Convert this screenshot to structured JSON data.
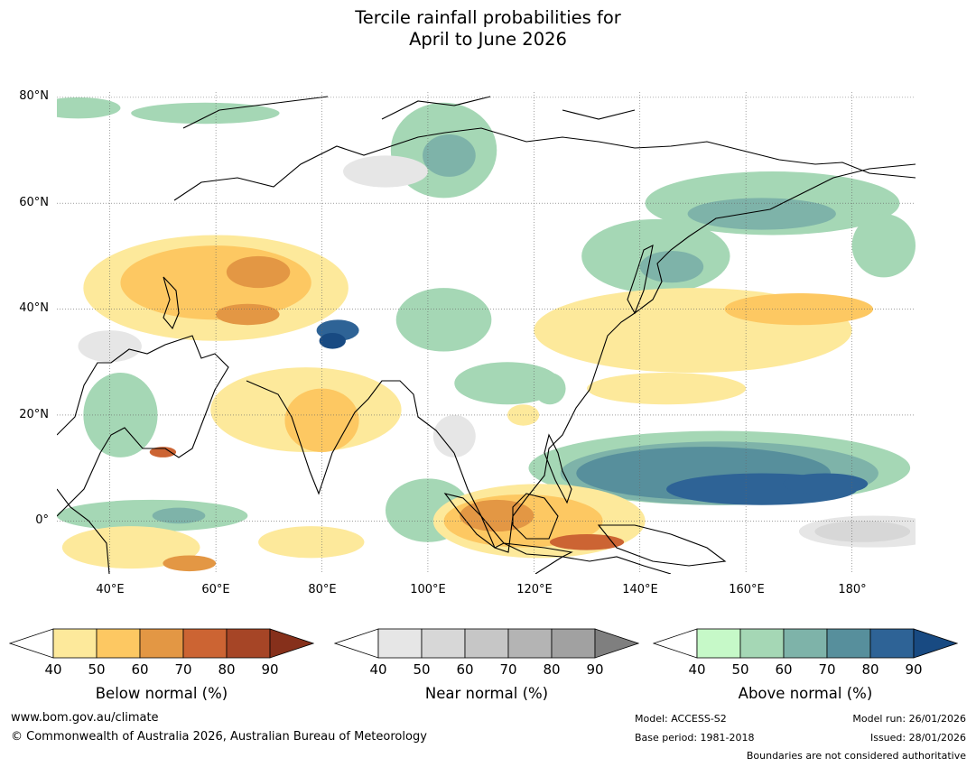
{
  "title": {
    "line1": "Tercile rainfall probabilities for",
    "line2": "April to June 2026"
  },
  "map": {
    "projection": "equirectangular",
    "lon_range": [
      30,
      192
    ],
    "lat_range": [
      -10,
      81
    ],
    "lat_ticks": [
      {
        "value": 80,
        "label": "80°N"
      },
      {
        "value": 60,
        "label": "60°N"
      },
      {
        "value": 40,
        "label": "40°N"
      },
      {
        "value": 20,
        "label": "20°N"
      },
      {
        "value": 0,
        "label": "0°"
      }
    ],
    "lon_ticks": [
      {
        "value": 40,
        "label": "40°E"
      },
      {
        "value": 60,
        "label": "60°E"
      },
      {
        "value": 80,
        "label": "80°E"
      },
      {
        "value": 100,
        "label": "100°E"
      },
      {
        "value": 120,
        "label": "120°E"
      },
      {
        "value": 140,
        "label": "140°E"
      },
      {
        "value": 160,
        "label": "160°E"
      },
      {
        "value": 180,
        "label": "180°"
      }
    ],
    "regions": [
      {
        "category": "above",
        "level": 50,
        "lon": 34,
        "lat": 78,
        "rx": 8,
        "ry": 2
      },
      {
        "category": "above",
        "level": 50,
        "lon": 58,
        "lat": 77,
        "rx": 14,
        "ry": 2
      },
      {
        "category": "above",
        "level": 50,
        "lon": 103,
        "lat": 70,
        "rx": 10,
        "ry": 9
      },
      {
        "category": "above",
        "level": 60,
        "lon": 104,
        "lat": 69,
        "rx": 5,
        "ry": 4
      },
      {
        "category": "above",
        "level": 50,
        "lon": 165,
        "lat": 60,
        "rx": 24,
        "ry": 6
      },
      {
        "category": "above",
        "level": 60,
        "lon": 163,
        "lat": 58,
        "rx": 14,
        "ry": 3
      },
      {
        "category": "above",
        "level": 50,
        "lon": 143,
        "lat": 50,
        "rx": 14,
        "ry": 7
      },
      {
        "category": "above",
        "level": 60,
        "lon": 146,
        "lat": 48,
        "rx": 6,
        "ry": 3
      },
      {
        "category": "above",
        "level": 50,
        "lon": 186,
        "lat": 52,
        "rx": 6,
        "ry": 6
      },
      {
        "category": "above",
        "level": 50,
        "lon": 103,
        "lat": 38,
        "rx": 9,
        "ry": 6
      },
      {
        "category": "above",
        "level": 50,
        "lon": 115,
        "lat": 26,
        "rx": 10,
        "ry": 4
      },
      {
        "category": "above",
        "level": 50,
        "lon": 100,
        "lat": 2,
        "rx": 8,
        "ry": 6
      },
      {
        "category": "above",
        "level": 50,
        "lon": 48,
        "lat": 1,
        "rx": 18,
        "ry": 3
      },
      {
        "category": "above",
        "level": 60,
        "lon": 53,
        "lat": 1,
        "rx": 5,
        "ry": 1.5
      },
      {
        "category": "above",
        "level": 50,
        "lon": 42,
        "lat": 20,
        "rx": 7,
        "ry": 8
      },
      {
        "category": "above",
        "level": 50,
        "lon": 123,
        "lat": 25,
        "rx": 3,
        "ry": 3
      },
      {
        "category": "above",
        "level": 50,
        "lon": 155,
        "lat": 10,
        "rx": 36,
        "ry": 7
      },
      {
        "category": "above",
        "level": 60,
        "lon": 155,
        "lat": 9,
        "rx": 30,
        "ry": 6
      },
      {
        "category": "above",
        "level": 70,
        "lon": 152,
        "lat": 9,
        "rx": 24,
        "ry": 5
      },
      {
        "category": "above",
        "level": 80,
        "lon": 163,
        "lat": 6,
        "rx": 18,
        "ry": 3
      },
      {
        "category": "above",
        "level": 80,
        "lon": 175,
        "lat": 7,
        "rx": 8,
        "ry": 2
      },
      {
        "category": "above",
        "level": 80,
        "lon": 83,
        "lat": 36,
        "rx": 4,
        "ry": 2
      },
      {
        "category": "above",
        "level": 90,
        "lon": 82,
        "lat": 34,
        "rx": 2.5,
        "ry": 1.5
      },
      {
        "category": "below",
        "level": 40,
        "lon": 60,
        "lat": 44,
        "rx": 25,
        "ry": 10
      },
      {
        "category": "below",
        "level": 50,
        "lon": 60,
        "lat": 45,
        "rx": 18,
        "ry": 7
      },
      {
        "category": "below",
        "level": 60,
        "lon": 68,
        "lat": 47,
        "rx": 6,
        "ry": 3
      },
      {
        "category": "below",
        "level": 60,
        "lon": 66,
        "lat": 39,
        "rx": 6,
        "ry": 2
      },
      {
        "category": "below",
        "level": 40,
        "lon": 77,
        "lat": 21,
        "rx": 18,
        "ry": 8
      },
      {
        "category": "below",
        "level": 50,
        "lon": 80,
        "lat": 19,
        "rx": 7,
        "ry": 6
      },
      {
        "category": "below",
        "level": 40,
        "lon": 44,
        "lat": -5,
        "rx": 13,
        "ry": 4
      },
      {
        "category": "below",
        "level": 60,
        "lon": 55,
        "lat": -8,
        "rx": 5,
        "ry": 1.5
      },
      {
        "category": "below",
        "level": 40,
        "lon": 78,
        "lat": -4,
        "rx": 10,
        "ry": 3
      },
      {
        "category": "below",
        "level": 40,
        "lon": 121,
        "lat": 0,
        "rx": 20,
        "ry": 7
      },
      {
        "category": "below",
        "level": 50,
        "lon": 118,
        "lat": 0,
        "rx": 15,
        "ry": 5
      },
      {
        "category": "below",
        "level": 60,
        "lon": 113,
        "lat": 1,
        "rx": 7,
        "ry": 3
      },
      {
        "category": "below",
        "level": 70,
        "lon": 130,
        "lat": -4,
        "rx": 7,
        "ry": 1.5
      },
      {
        "category": "below",
        "level": 40,
        "lon": 150,
        "lat": 36,
        "rx": 30,
        "ry": 8
      },
      {
        "category": "below",
        "level": 50,
        "lon": 170,
        "lat": 40,
        "rx": 14,
        "ry": 3
      },
      {
        "category": "below",
        "level": 40,
        "lon": 145,
        "lat": 25,
        "rx": 15,
        "ry": 3
      },
      {
        "category": "below",
        "level": 40,
        "lon": 118,
        "lat": 20,
        "rx": 3,
        "ry": 2
      },
      {
        "category": "below",
        "level": 70,
        "lon": 50,
        "lat": 13,
        "rx": 2.5,
        "ry": 1
      },
      {
        "category": "near",
        "level": 40,
        "lon": 184,
        "lat": -2,
        "rx": 14,
        "ry": 3
      },
      {
        "category": "near",
        "level": 50,
        "lon": 182,
        "lat": -2,
        "rx": 9,
        "ry": 2
      },
      {
        "category": "near",
        "level": 40,
        "lon": 92,
        "lat": 66,
        "rx": 8,
        "ry": 3
      },
      {
        "category": "near",
        "level": 40,
        "lon": 105,
        "lat": 16,
        "rx": 4,
        "ry": 4
      },
      {
        "category": "near",
        "level": 40,
        "lon": 40,
        "lat": 33,
        "rx": 6,
        "ry": 3
      }
    ]
  },
  "colorbars": [
    {
      "category": "below",
      "title": "Below normal (%)",
      "ticks": [
        "40",
        "50",
        "60",
        "70",
        "80",
        "90"
      ],
      "colors": [
        "#fde99b",
        "#fdc862",
        "#e39744",
        "#cc6433",
        "#a64526"
      ],
      "under_color": "#ffffff",
      "over_color": "#86301b"
    },
    {
      "category": "near",
      "title": "Near normal (%)",
      "ticks": [
        "40",
        "50",
        "60",
        "70",
        "80",
        "90"
      ],
      "colors": [
        "#e6e6e6",
        "#d7d7d7",
        "#c6c6c6",
        "#b4b4b4",
        "#a1a1a1"
      ],
      "under_color": "#ffffff",
      "over_color": "#7f7f7f"
    },
    {
      "category": "above",
      "title": "Above normal (%)",
      "ticks": [
        "40",
        "50",
        "60",
        "70",
        "80",
        "90"
      ],
      "colors": [
        "#c6f9c8",
        "#a5d7b5",
        "#7eb3a9",
        "#578f9c",
        "#2e6396"
      ],
      "under_color": "#ffffff",
      "over_color": "#184a82"
    }
  ],
  "footer": {
    "website": "www.bom.gov.au/climate",
    "copyright": "© Commonwealth of Australia 2026, Australian Bureau of Meteorology",
    "model": "Model: ACCESS-S2",
    "base_period": "Base period: 1981-2018",
    "model_run": "Model run: 26/01/2026",
    "issued": "Issued: 28/01/2026",
    "disclaimer": "Boundaries are not considered authoritative"
  }
}
